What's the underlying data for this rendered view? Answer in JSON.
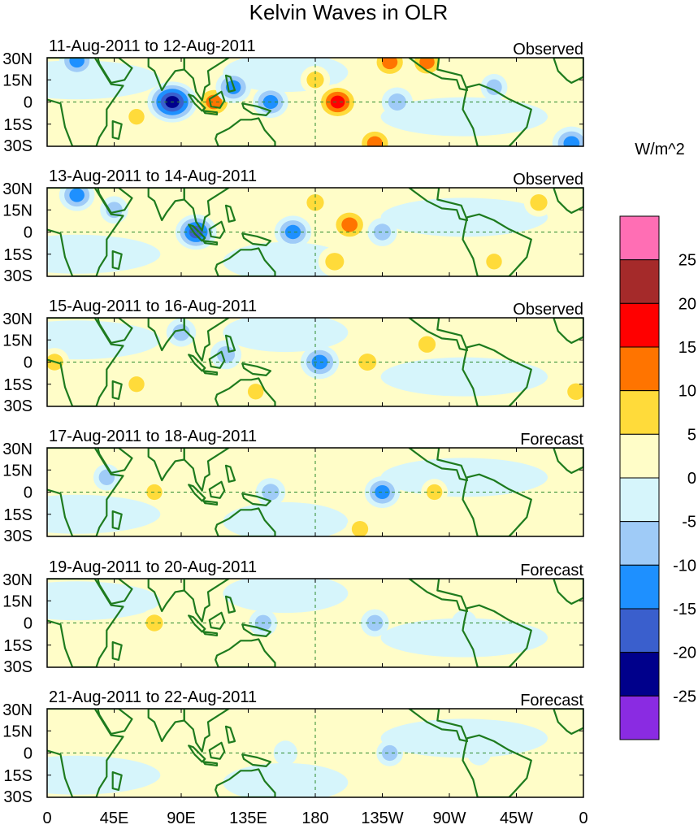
{
  "chart_data": {
    "type": "heatmap",
    "title": "Kelvin Waves in OLR",
    "units": "W/m^2",
    "y_ticks": [
      "30N",
      "15N",
      "0",
      "15S",
      "30S"
    ],
    "x_ticks": [
      "0",
      "45E",
      "90E",
      "135E",
      "180",
      "135W",
      "90W",
      "45W",
      "0"
    ],
    "x_range_deg": [
      0,
      360
    ],
    "y_range_deg": [
      -30,
      30
    ],
    "panels": [
      {
        "date_range": "11-Aug-2011 to 12-Aug-2011",
        "status": "Observed",
        "anomalies": [
          {
            "lon": 84,
            "lat": 0,
            "value": -22
          },
          {
            "lon": 112,
            "lat": 0,
            "value": 14
          },
          {
            "lon": 125,
            "lat": 10,
            "value": -12
          },
          {
            "lon": 150,
            "lat": 0,
            "value": -12
          },
          {
            "lon": 180,
            "lat": 15,
            "value": 8
          },
          {
            "lon": 195,
            "lat": 0,
            "value": 17
          },
          {
            "lon": 230,
            "lat": 27,
            "value": 13
          },
          {
            "lon": 255,
            "lat": 27,
            "value": 12
          },
          {
            "lon": 220,
            "lat": -28,
            "value": 13
          },
          {
            "lon": 235,
            "lat": 0,
            "value": -9
          },
          {
            "lon": 352,
            "lat": -28,
            "value": -14
          },
          {
            "lon": 20,
            "lat": 28,
            "value": -12
          },
          {
            "lon": 60,
            "lat": -10,
            "value": 6
          },
          {
            "lon": 300,
            "lat": 10,
            "value": -6
          }
        ]
      },
      {
        "date_range": "13-Aug-2011 to 14-Aug-2011",
        "status": "Observed",
        "anomalies": [
          {
            "lon": 100,
            "lat": 0,
            "value": -16
          },
          {
            "lon": 165,
            "lat": 0,
            "value": -13
          },
          {
            "lon": 203,
            "lat": 5,
            "value": 14
          },
          {
            "lon": 193,
            "lat": -20,
            "value": 10
          },
          {
            "lon": 180,
            "lat": 20,
            "value": 8
          },
          {
            "lon": 225,
            "lat": 0,
            "value": -8
          },
          {
            "lon": 20,
            "lat": 25,
            "value": -12
          },
          {
            "lon": 330,
            "lat": 20,
            "value": 8
          },
          {
            "lon": 300,
            "lat": -20,
            "value": 6
          },
          {
            "lon": 45,
            "lat": 15,
            "value": -7
          }
        ]
      },
      {
        "date_range": "15-Aug-2011 to 16-Aug-2011",
        "status": "Observed",
        "anomalies": [
          {
            "lon": 183,
            "lat": 0,
            "value": -14
          },
          {
            "lon": 120,
            "lat": 5,
            "value": -9
          },
          {
            "lon": 215,
            "lat": 0,
            "value": 9
          },
          {
            "lon": 255,
            "lat": 12,
            "value": 8
          },
          {
            "lon": 5,
            "lat": 0,
            "value": 8
          },
          {
            "lon": 355,
            "lat": -20,
            "value": 8
          },
          {
            "lon": 90,
            "lat": 20,
            "value": -8
          },
          {
            "lon": 140,
            "lat": -20,
            "value": 6
          },
          {
            "lon": 60,
            "lat": -15,
            "value": 6
          }
        ]
      },
      {
        "date_range": "17-Aug-2011 to 18-Aug-2011",
        "status": "Forecast",
        "anomalies": [
          {
            "lon": 225,
            "lat": 0,
            "value": -12
          },
          {
            "lon": 150,
            "lat": 0,
            "value": -8
          },
          {
            "lon": 72,
            "lat": 0,
            "value": 6
          },
          {
            "lon": 260,
            "lat": 0,
            "value": 6
          },
          {
            "lon": 210,
            "lat": -25,
            "value": 7
          },
          {
            "lon": 40,
            "lat": 10,
            "value": -6
          },
          {
            "lon": 315,
            "lat": -20,
            "value": 5
          }
        ]
      },
      {
        "date_range": "19-Aug-2011 to 20-Aug-2011",
        "status": "Forecast",
        "anomalies": [
          {
            "lon": 72,
            "lat": 0,
            "value": 8
          },
          {
            "lon": 145,
            "lat": 0,
            "value": -7
          },
          {
            "lon": 220,
            "lat": 0,
            "value": -7
          },
          {
            "lon": 280,
            "lat": 0,
            "value": -5
          },
          {
            "lon": 180,
            "lat": -20,
            "value": 3
          }
        ]
      },
      {
        "date_range": "21-Aug-2011 to 22-Aug-2011",
        "status": "Forecast",
        "anomalies": [
          {
            "lon": 230,
            "lat": 0,
            "value": -6
          },
          {
            "lon": 160,
            "lat": 0,
            "value": -4
          },
          {
            "lon": 100,
            "lat": 5,
            "value": 3
          },
          {
            "lon": 290,
            "lat": 0,
            "value": -4
          }
        ]
      }
    ],
    "colorbar": {
      "levels": [
        -25,
        -20,
        -15,
        -10,
        -5,
        0,
        5,
        10,
        15,
        20,
        25
      ],
      "labels": [
        "25",
        "20",
        "15",
        "10",
        "5",
        "0",
        "-5",
        "-10",
        "-15",
        "-20",
        "-25"
      ],
      "colors": [
        "#8A2BE2",
        "#00008B",
        "#3A5FCD",
        "#1E90FF",
        "#9FCBF7",
        "#D6F5FB",
        "#FFFDC8",
        "#FFDB3A",
        "#FF7400",
        "#FF0000",
        "#A52A2A",
        "#FF6EB4"
      ]
    }
  }
}
